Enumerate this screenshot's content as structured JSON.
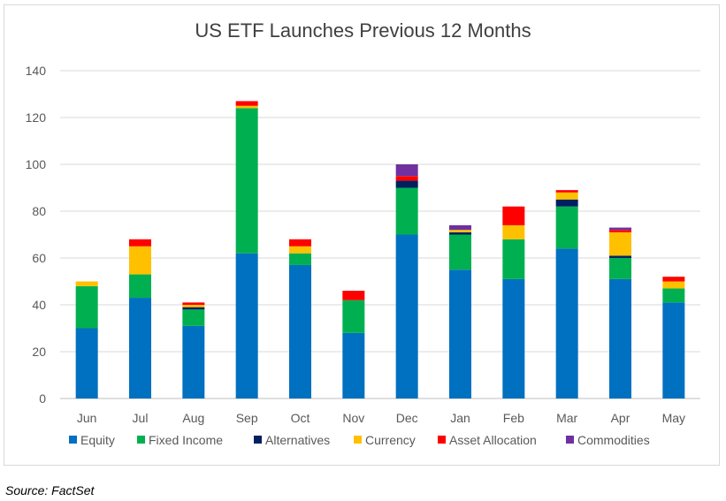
{
  "chart_data": {
    "type": "bar",
    "stacked": true,
    "title": "US ETF Launches Previous 12 Months",
    "categories": [
      "Jun",
      "Jul",
      "Aug",
      "Sep",
      "Oct",
      "Nov",
      "Dec",
      "Jan",
      "Feb",
      "Mar",
      "Apr",
      "May"
    ],
    "series": [
      {
        "name": "Equity",
        "color": "#0070c0",
        "values": [
          30,
          43,
          31,
          62,
          57,
          28,
          70,
          55,
          51,
          64,
          51,
          41
        ]
      },
      {
        "name": "Fixed Income",
        "color": "#00b050",
        "values": [
          18,
          10,
          7,
          62,
          5,
          14,
          20,
          15,
          17,
          18,
          9,
          6
        ]
      },
      {
        "name": "Alternatives",
        "color": "#002060",
        "values": [
          0,
          0,
          1,
          0,
          0,
          0,
          3,
          1,
          0,
          3,
          1,
          0
        ]
      },
      {
        "name": "Currency",
        "color": "#ffc000",
        "values": [
          2,
          12,
          1,
          1,
          3,
          0,
          0,
          1,
          6,
          3,
          10,
          3
        ]
      },
      {
        "name": "Asset Allocation",
        "color": "#ff0000",
        "values": [
          0,
          3,
          1,
          2,
          3,
          4,
          2,
          0,
          8,
          1,
          1,
          2
        ]
      },
      {
        "name": "Commodities",
        "color": "#7030a0",
        "values": [
          0,
          0,
          0,
          0,
          0,
          0,
          5,
          2,
          0,
          0,
          1,
          0
        ]
      }
    ],
    "ylim": [
      0,
      140
    ],
    "yticks": [
      0,
      20,
      40,
      60,
      80,
      100,
      120,
      140
    ],
    "grid": true,
    "legend_position": "bottom"
  },
  "source": "Source: FactSet"
}
